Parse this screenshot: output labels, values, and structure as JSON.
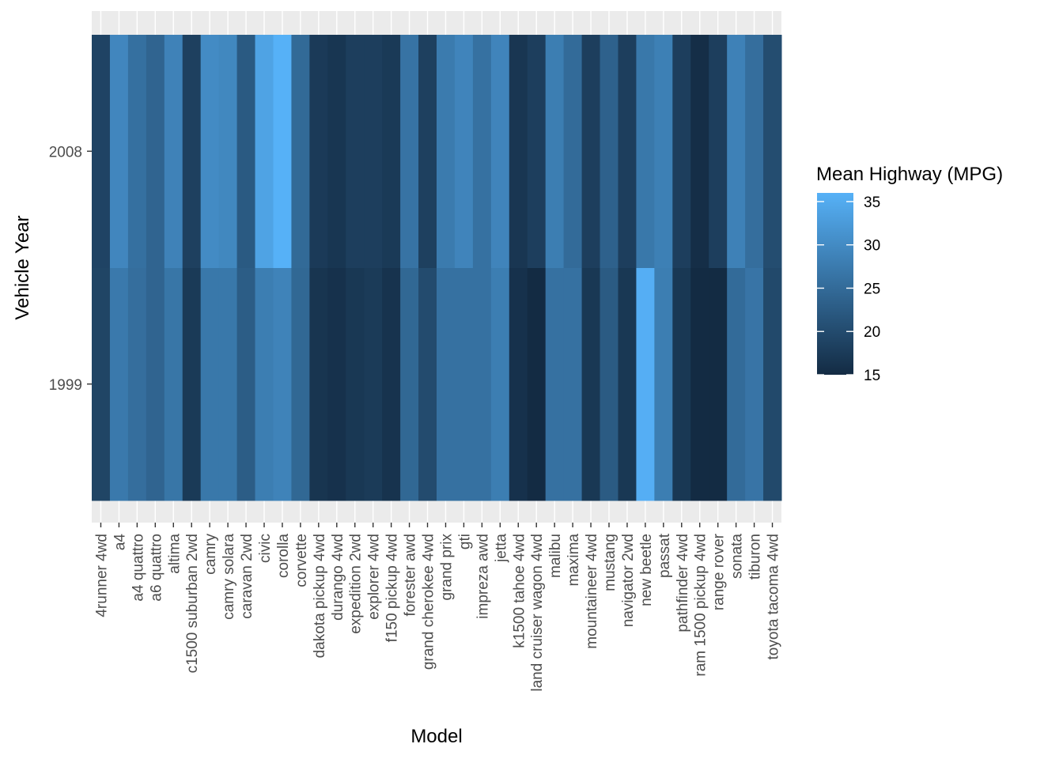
{
  "chart_data": {
    "type": "heatmap",
    "title": "",
    "xlabel": "Model",
    "ylabel": "Vehicle Year",
    "grid": true,
    "legend_position": "right",
    "x": [
      "4runner 4wd",
      "a4",
      "a4 quattro",
      "a6 quattro",
      "altima",
      "c1500 suburban 2wd",
      "camry",
      "camry solara",
      "caravan 2wd",
      "civic",
      "corolla",
      "corvette",
      "dakota pickup 4wd",
      "durango 4wd",
      "expedition 2wd",
      "explorer 4wd",
      "f150 pickup 4wd",
      "forester awd",
      "grand cherokee 4wd",
      "grand prix",
      "gti",
      "impreza awd",
      "jetta",
      "k1500 tahoe 4wd",
      "land cruiser wagon 4wd",
      "malibu",
      "maxima",
      "mountaineer 4wd",
      "mustang",
      "navigator 2wd",
      "new beetle",
      "passat",
      "pathfinder 4wd",
      "ram 1500 pickup 4wd",
      "range rover",
      "sonata",
      "tiburon",
      "toyota tacoma 4wd"
    ],
    "y": [
      "1999",
      "2008"
    ],
    "series": [
      {
        "name": "2008",
        "values": [
          18.8,
          29.3,
          25.8,
          24.0,
          28.7,
          18.3,
          30.0,
          29.5,
          22.3,
          33.8,
          36.0,
          24.8,
          17.4,
          16.7,
          18.0,
          18.0,
          17.3,
          26.3,
          18.3,
          27.5,
          29.0,
          26.0,
          29.0,
          16.8,
          18.0,
          28.0,
          25.0,
          18.0,
          23.5,
          18.0,
          27.0,
          28.3,
          18.0,
          15.5,
          18.0,
          28.5,
          25.5,
          20.3
        ]
      },
      {
        "name": "1999",
        "values": [
          19.0,
          27.3,
          25.5,
          24.0,
          26.7,
          17.3,
          27.0,
          27.0,
          22.8,
          28.0,
          28.8,
          24.5,
          16.5,
          16.0,
          17.0,
          17.5,
          16.3,
          24.5,
          20.0,
          26.0,
          26.0,
          26.0,
          28.0,
          16.0,
          15.0,
          26.0,
          26.0,
          17.0,
          22.5,
          17.0,
          35.6,
          28.0,
          17.0,
          15.0,
          15.0,
          25.0,
          26.5,
          19.7
        ]
      }
    ],
    "colorbar": {
      "title": "Mean Highway (MPG)",
      "min": 15.0,
      "max": 36.0,
      "ticks": [
        15,
        20,
        25,
        30,
        35
      ],
      "low_color": "#132B43",
      "high_color": "#56B1F7"
    },
    "ylim_labels": [
      "1999",
      "2008"
    ]
  },
  "colors": {
    "panel_background": "#EBEBEB",
    "grid": "#FFFFFF",
    "axis_text": "#4D4D4D"
  }
}
